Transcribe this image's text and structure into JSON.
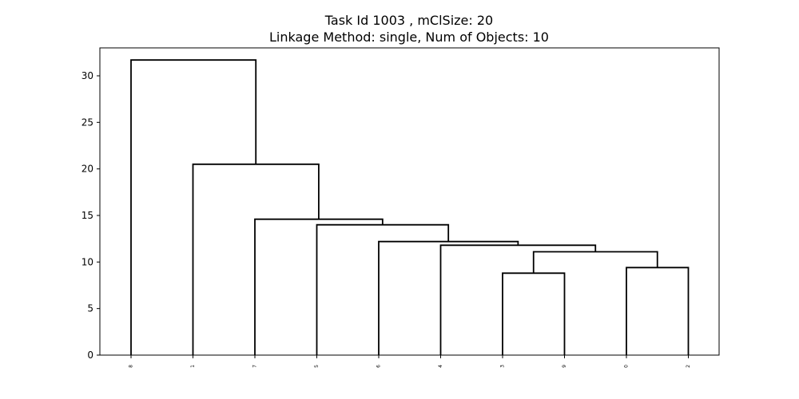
{
  "chart_data": {
    "type": "dendrogram",
    "title_lines": [
      "Task Id 1003 , mClSize: 20",
      "Linkage Method: single, Num of Objects: 10"
    ],
    "xlabel": "",
    "ylabel": "",
    "ylim": [
      0,
      33
    ],
    "yticks": [
      0,
      5,
      10,
      15,
      20,
      25,
      30
    ],
    "leaves": [
      "8",
      "1",
      "7",
      "5",
      "6",
      "4",
      "3",
      "9",
      "0",
      "2"
    ],
    "links": [
      {
        "left": [
          6,
          0
        ],
        "right": [
          7,
          0
        ],
        "height": 8.8
      },
      {
        "left": [
          8,
          0
        ],
        "right": [
          9,
          0
        ],
        "height": 9.4
      },
      {
        "left": [
          6.5,
          8.8
        ],
        "right": [
          8.5,
          9.4
        ],
        "height": 11.1
      },
      {
        "left": [
          5,
          0
        ],
        "right": [
          7.5,
          11.1
        ],
        "height": 11.8
      },
      {
        "left": [
          4,
          0
        ],
        "right": [
          6.25,
          11.8
        ],
        "height": 12.2
      },
      {
        "left": [
          3,
          0
        ],
        "right": [
          5.125,
          12.2
        ],
        "height": 14.0
      },
      {
        "left": [
          2,
          0
        ],
        "right": [
          4.0625,
          14.0
        ],
        "height": 14.6
      },
      {
        "left": [
          1,
          0
        ],
        "right": [
          3.03125,
          14.6
        ],
        "height": 20.5
      },
      {
        "left": [
          0,
          0
        ],
        "right": [
          2.015625,
          20.5
        ],
        "height": 31.7
      }
    ],
    "grid": false,
    "color": "#000000"
  }
}
